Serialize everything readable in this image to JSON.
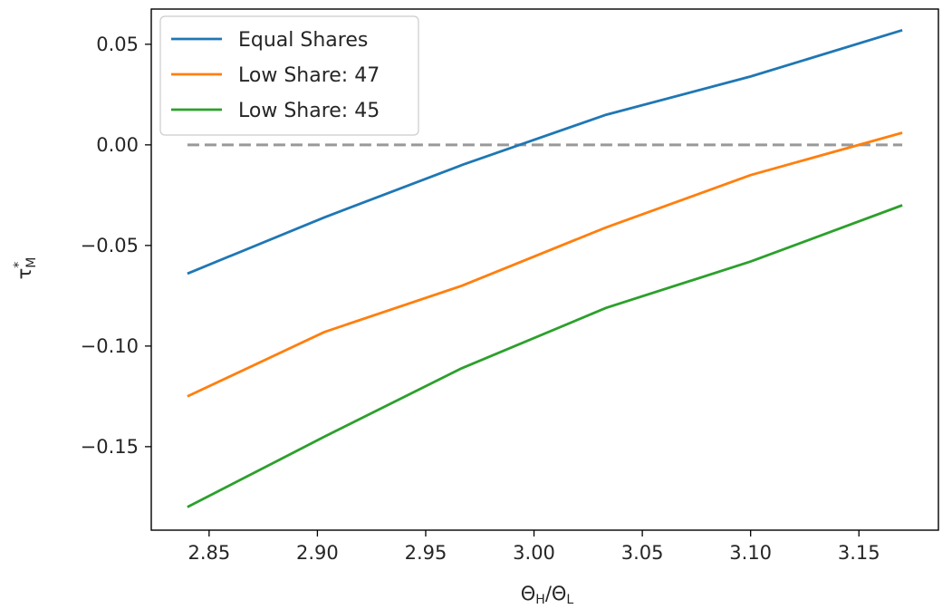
{
  "chart_data": {
    "type": "line",
    "title": "",
    "xlabel": "ΘH/ΘL",
    "ylabel": "τ*M",
    "xlim": [
      2.8233,
      3.1867
    ],
    "ylim": [
      -0.1915,
      0.0675
    ],
    "xticks": [
      2.85,
      2.9,
      2.95,
      3.0,
      3.05,
      3.1,
      3.15
    ],
    "xtick_labels": [
      "2.85",
      "2.90",
      "2.95",
      "3.00",
      "3.05",
      "3.10",
      "3.15"
    ],
    "yticks": [
      0.05,
      0.0,
      -0.05,
      -0.1,
      -0.15
    ],
    "ytick_labels": [
      "0.05",
      "0.00",
      "−0.05",
      "−0.10",
      "−0.15"
    ],
    "grid": false,
    "legend_position": "top-left",
    "reference_line": {
      "y": 0.0,
      "x_range": [
        2.84,
        3.17
      ],
      "style": "dashed",
      "color": "#999999"
    },
    "x": [
      2.84,
      2.9033,
      2.9667,
      3.0333,
      3.1,
      3.17
    ],
    "series": [
      {
        "name": "Equal Shares",
        "color": "#1f77b4",
        "values": [
          -0.064,
          -0.036,
          -0.01,
          0.015,
          0.034,
          0.057
        ]
      },
      {
        "name": "Low Share: 47",
        "color": "#ff7f0e",
        "values": [
          -0.125,
          -0.093,
          -0.07,
          -0.041,
          -0.015,
          0.006
        ]
      },
      {
        "name": "Low Share: 45",
        "color": "#2ca02c",
        "values": [
          -0.18,
          -0.145,
          -0.111,
          -0.081,
          -0.058,
          -0.03
        ]
      }
    ]
  }
}
